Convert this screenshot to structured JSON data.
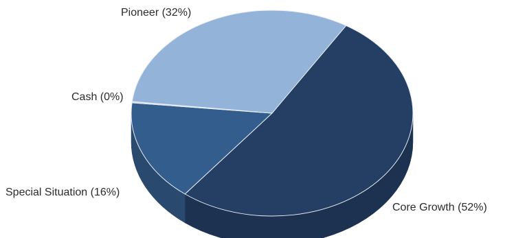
{
  "chart_data": {
    "type": "pie",
    "style": "3d",
    "title": "",
    "categories": [
      "Core Growth",
      "Special Situation",
      "Cash",
      "Pioneer"
    ],
    "values": [
      52,
      16,
      0,
      32
    ],
    "labels": [
      "Core Growth (52%)",
      "Special Situation (16%)",
      "Cash (0%)",
      "Pioneer (32%)"
    ],
    "colors": {
      "Core Growth": "#243f63",
      "Special Situation": "#335d8d",
      "Cash": "#c9d6e8",
      "Pioneer": "#94b3d9"
    },
    "side_colors": {
      "Core Growth": "#1c3250",
      "Special Situation": "#29496f",
      "Cash": "#aebfd6",
      "Pioneer": "#7894b8"
    }
  }
}
